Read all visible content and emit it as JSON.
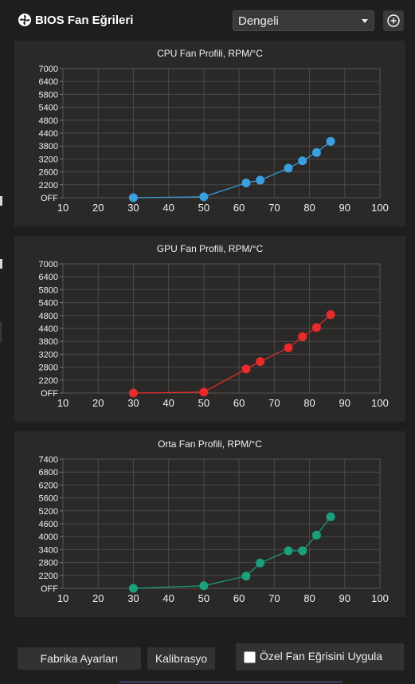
{
  "header": {
    "title": "BIOS Fan Eğrileri",
    "preset_value": "Dengeli"
  },
  "icons": {
    "app": "fan-icon",
    "dropdown": "chevron-down-icon",
    "add": "plus-circle-icon"
  },
  "chart_data": [
    {
      "type": "line",
      "title": "CPU Fan Profili, RPM/°C",
      "color": "#3aa0e0",
      "x": [
        30,
        50,
        62,
        66,
        74,
        78,
        82,
        86
      ],
      "y": [
        0,
        50,
        800,
        950,
        1600,
        2000,
        2450,
        3050
      ],
      "xlim": [
        10,
        100
      ],
      "xticks": [
        "10",
        "20",
        "30",
        "40",
        "50",
        "60",
        "70",
        "80",
        "90",
        "100"
      ],
      "ylim": [
        0,
        7000
      ],
      "yticks": [
        "OFF",
        "2200",
        "2600",
        "3200",
        "3800",
        "4400",
        "4800",
        "5400",
        "5800",
        "6400",
        "7000"
      ]
    },
    {
      "type": "line",
      "title": "GPU Fan Profili, RPM/°C",
      "color": "#e82a2a",
      "x": [
        30,
        50,
        62,
        66,
        74,
        78,
        82,
        86
      ],
      "y": [
        0,
        50,
        1300,
        1700,
        2450,
        3050,
        3550,
        4250
      ],
      "xlim": [
        10,
        100
      ],
      "xticks": [
        "10",
        "20",
        "30",
        "40",
        "50",
        "60",
        "70",
        "80",
        "90",
        "100"
      ],
      "ylim": [
        0,
        7000
      ],
      "yticks": [
        "OFF",
        "2200",
        "2800",
        "3200",
        "3800",
        "4400",
        "4800",
        "5400",
        "5800",
        "6400",
        "7000"
      ]
    },
    {
      "type": "line",
      "title": "Orta Fan Profili, RPM/°C",
      "color": "#1aa07a",
      "x": [
        30,
        50,
        62,
        66,
        74,
        78,
        82,
        86
      ],
      "y": [
        0,
        150,
        700,
        1450,
        2150,
        2150,
        3050,
        4100
      ],
      "xlim": [
        10,
        100
      ],
      "xticks": [
        "10",
        "20",
        "30",
        "40",
        "50",
        "60",
        "70",
        "80",
        "90",
        "100"
      ],
      "ylim": [
        0,
        7400
      ],
      "yticks": [
        "OFF",
        "2200",
        "2800",
        "3400",
        "4000",
        "4600",
        "5200",
        "5600",
        "6200",
        "6800",
        "7400"
      ]
    }
  ],
  "footer": {
    "factory_label": "Fabrika Ayarları",
    "calibration_label": "Kalibrasyo",
    "custom_curve_label": "Özel Fan Eğrisini Uygula"
  }
}
